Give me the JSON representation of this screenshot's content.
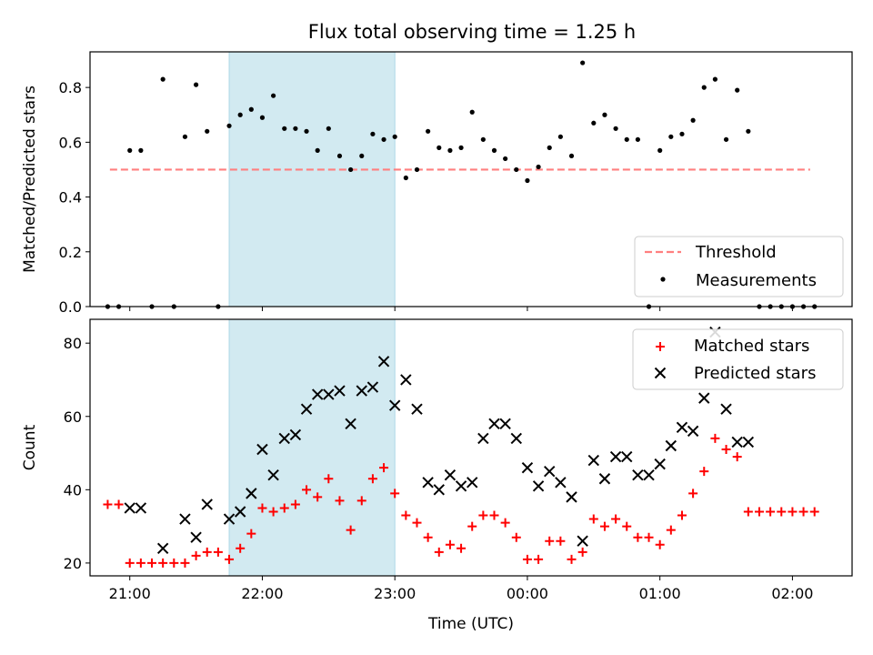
{
  "chart_data": [
    {
      "type": "scatter",
      "title": "Flux total observing time = 1.25 h",
      "ylabel": "Matched/Predicted stars",
      "xlabel": "",
      "xlim": [
        "20:42",
        "02:27"
      ],
      "ylim": [
        0,
        0.93
      ],
      "grid": false,
      "legend_position": "bottom-right",
      "x_ticks": [
        "21:00",
        "22:00",
        "23:00",
        "00:00",
        "01:00",
        "02:00"
      ],
      "y_ticks": [
        "0.0",
        "0.2",
        "0.4",
        "0.6",
        "0.8"
      ],
      "y_tick_values": [
        0,
        0.2,
        0.4,
        0.6,
        0.8
      ],
      "shaded_region": {
        "start": "21:45",
        "end": "23:00",
        "color": "#add8e6"
      },
      "threshold": {
        "name": "Threshold",
        "value": 0.5,
        "start": "20:51",
        "end": "02:08",
        "color": "#ff7f7f",
        "style": "dashed"
      },
      "series": [
        {
          "name": "Measurements",
          "color": "#000000",
          "marker": "dot",
          "x": [
            "20:50",
            "20:55",
            "21:00",
            "21:05",
            "21:10",
            "21:15",
            "21:20",
            "21:25",
            "21:30",
            "21:35",
            "21:40",
            "21:45",
            "21:50",
            "21:55",
            "22:00",
            "22:05",
            "22:10",
            "22:15",
            "22:20",
            "22:25",
            "22:30",
            "22:35",
            "22:40",
            "22:45",
            "22:50",
            "22:55",
            "23:00",
            "23:05",
            "23:10",
            "23:15",
            "23:20",
            "23:25",
            "23:30",
            "23:35",
            "23:40",
            "23:45",
            "23:50",
            "23:55",
            "00:00",
            "00:05",
            "00:10",
            "00:15",
            "00:20",
            "00:25",
            "00:30",
            "00:35",
            "00:40",
            "00:45",
            "00:50",
            "00:55",
            "01:00",
            "01:05",
            "01:10",
            "01:15",
            "01:20",
            "01:25",
            "01:30",
            "01:35",
            "01:40",
            "01:45",
            "01:50",
            "01:55",
            "02:00",
            "02:05",
            "02:10"
          ],
          "y": [
            0,
            0,
            0.57,
            0.57,
            0,
            0.83,
            0,
            0.62,
            0.81,
            0.64,
            0,
            0.66,
            0.7,
            0.72,
            0.69,
            0.77,
            0.65,
            0.65,
            0.64,
            0.57,
            0.65,
            0.55,
            0.5,
            0.55,
            0.63,
            0.61,
            0.62,
            0.47,
            0.5,
            0.64,
            0.58,
            0.57,
            0.58,
            0.71,
            0.61,
            0.57,
            0.54,
            0.5,
            0.46,
            0.51,
            0.58,
            0.62,
            0.55,
            0.89,
            0.67,
            0.7,
            0.65,
            0.61,
            0.61,
            0,
            0.57,
            0.62,
            0.63,
            0.68,
            0.8,
            0.83,
            0.61,
            0.79,
            0.64,
            0,
            0,
            0,
            0,
            0,
            0
          ]
        }
      ]
    },
    {
      "type": "scatter",
      "title": "",
      "xlabel": "Time (UTC)",
      "ylabel": "Count",
      "xlim": [
        "20:42",
        "02:27"
      ],
      "ylim": [
        16.5,
        86.5
      ],
      "grid": false,
      "legend_position": "top-right",
      "x_ticks": [
        "21:00",
        "22:00",
        "23:00",
        "00:00",
        "01:00",
        "02:00"
      ],
      "y_ticks": [
        "20",
        "40",
        "60",
        "80"
      ],
      "y_tick_values": [
        20,
        40,
        60,
        80
      ],
      "shaded_region": {
        "start": "21:45",
        "end": "23:00",
        "color": "#add8e6"
      },
      "series": [
        {
          "name": "Matched stars",
          "color": "#ff0000",
          "marker": "plus",
          "x": [
            "20:50",
            "20:55",
            "21:00",
            "21:05",
            "21:10",
            "21:15",
            "21:20",
            "21:25",
            "21:30",
            "21:35",
            "21:40",
            "21:45",
            "21:50",
            "21:55",
            "22:00",
            "22:05",
            "22:10",
            "22:15",
            "22:20",
            "22:25",
            "22:30",
            "22:35",
            "22:40",
            "22:45",
            "22:50",
            "22:55",
            "23:00",
            "23:05",
            "23:10",
            "23:15",
            "23:20",
            "23:25",
            "23:30",
            "23:35",
            "23:40",
            "23:45",
            "23:50",
            "23:55",
            "00:00",
            "00:05",
            "00:10",
            "00:15",
            "00:20",
            "00:25",
            "00:30",
            "00:35",
            "00:40",
            "00:45",
            "00:50",
            "00:55",
            "01:00",
            "01:05",
            "01:10",
            "01:15",
            "01:20",
            "01:25",
            "01:30",
            "01:35",
            "01:40",
            "01:45",
            "01:50",
            "01:55",
            "02:00",
            "02:05",
            "02:10"
          ],
          "y": [
            36,
            36,
            20,
            20,
            20,
            20,
            20,
            20,
            22,
            23,
            23,
            21,
            24,
            28,
            35,
            34,
            35,
            36,
            40,
            38,
            43,
            37,
            29,
            37,
            43,
            46,
            39,
            33,
            31,
            27,
            23,
            25,
            24,
            30,
            33,
            33,
            31,
            27,
            21,
            21,
            26,
            26,
            21,
            23,
            32,
            30,
            32,
            30,
            27,
            27,
            25,
            29,
            33,
            39,
            45,
            54,
            51,
            49,
            34,
            34,
            34,
            34,
            34,
            34,
            34
          ]
        },
        {
          "name": "Predicted stars",
          "color": "#000000",
          "marker": "x",
          "x": [
            "21:00",
            "21:05",
            "21:15",
            "21:25",
            "21:30",
            "21:35",
            "21:45",
            "21:50",
            "21:55",
            "22:00",
            "22:05",
            "22:10",
            "22:15",
            "22:20",
            "22:25",
            "22:30",
            "22:35",
            "22:40",
            "22:45",
            "22:50",
            "22:55",
            "23:00",
            "23:05",
            "23:10",
            "23:15",
            "23:20",
            "23:25",
            "23:30",
            "23:35",
            "23:40",
            "23:45",
            "23:50",
            "23:55",
            "00:00",
            "00:05",
            "00:10",
            "00:15",
            "00:20",
            "00:25",
            "00:30",
            "00:35",
            "00:40",
            "00:45",
            "00:50",
            "00:55",
            "01:00",
            "01:05",
            "01:10",
            "01:15",
            "01:20",
            "01:25",
            "01:30",
            "01:35",
            "01:40"
          ],
          "y": [
            35,
            35,
            24,
            32,
            27,
            36,
            32,
            34,
            39,
            51,
            44,
            54,
            55,
            62,
            66,
            66,
            67,
            58,
            67,
            68,
            75,
            63,
            70,
            62,
            42,
            40,
            44,
            41,
            42,
            54,
            58,
            58,
            54,
            46,
            41,
            45,
            42,
            38,
            26,
            48,
            43,
            49,
            49,
            44,
            44,
            47,
            52,
            57,
            56,
            65,
            83,
            62,
            53,
            53
          ]
        }
      ]
    }
  ]
}
